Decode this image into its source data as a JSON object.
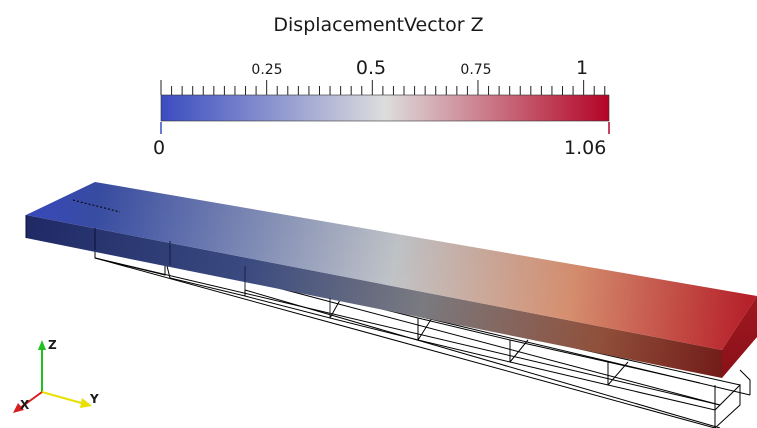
{
  "scalar_bar": {
    "title": "DisplacementVector Z",
    "range_min_label": "0",
    "range_max_label": "1.06",
    "tick_labels": [
      "0.25",
      "0.5",
      "0.75",
      "1"
    ],
    "colormap": [
      "#3b4cc0",
      "#dddddd",
      "#b40426"
    ],
    "range": [
      0,
      1.06
    ]
  },
  "orientation_axes": {
    "x_label": "X",
    "y_label": "Y",
    "z_label": "Z"
  },
  "colors": {
    "x_axis": "#d62020",
    "y_axis": "#e8e000",
    "z_axis": "#20c020",
    "wireframe": "#000000"
  }
}
